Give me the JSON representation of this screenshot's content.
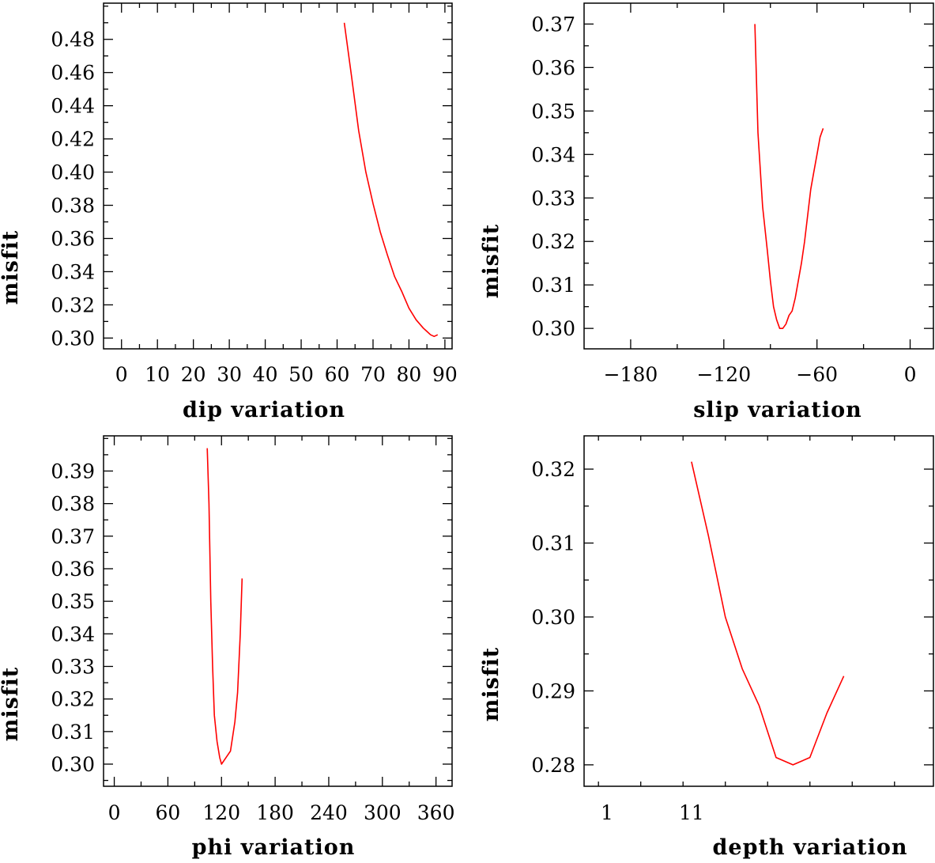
{
  "chart_data": [
    {
      "type": "line",
      "xlabel": "dip variation",
      "ylabel": "misfit",
      "xlim": [
        -5,
        92
      ],
      "ylim": [
        0.2935,
        0.5018
      ],
      "xticks": [
        0,
        10,
        20,
        30,
        40,
        50,
        60,
        70,
        80,
        90
      ],
      "xtick_labels": [
        "0",
        "10",
        "20",
        "30",
        "40",
        "50",
        "60",
        "70",
        "80",
        "90"
      ],
      "yticks": [
        0.3,
        0.32,
        0.34,
        0.36,
        0.38,
        0.4,
        0.42,
        0.44,
        0.46,
        0.48
      ],
      "ytick_labels": [
        "0.30",
        "0.32",
        "0.34",
        "0.36",
        "0.38",
        "0.40",
        "0.42",
        "0.44",
        "0.46",
        "0.48"
      ],
      "line_color": "#ff0000",
      "series": [
        {
          "x": [
            62,
            64,
            66,
            68,
            70,
            72,
            74,
            76,
            78,
            80,
            82,
            84,
            85,
            86,
            87,
            88
          ],
          "y": [
            0.49,
            0.458,
            0.425,
            0.4,
            0.381,
            0.364,
            0.35,
            0.337,
            0.328,
            0.318,
            0.311,
            0.306,
            0.304,
            0.302,
            0.301,
            0.302
          ]
        }
      ]
    },
    {
      "type": "line",
      "xlabel": "slip variation",
      "ylabel": "misfit",
      "xlim": [
        -210,
        15
      ],
      "ylim": [
        0.2953,
        0.3748
      ],
      "xticks": [
        -180,
        -120,
        -60,
        0
      ],
      "xtick_labels": [
        "−180",
        "−120",
        "−60",
        "0"
      ],
      "yticks": [
        0.3,
        0.31,
        0.32,
        0.33,
        0.34,
        0.35,
        0.36,
        0.37
      ],
      "ytick_labels": [
        "0.30",
        "0.31",
        "0.32",
        "0.33",
        "0.34",
        "0.35",
        "0.36",
        "0.37"
      ],
      "line_color": "#ff0000",
      "series": [
        {
          "x": [
            -100,
            -98,
            -95,
            -92,
            -90,
            -88,
            -86,
            -84,
            -82,
            -80,
            -78,
            -76,
            -74,
            -72,
            -70,
            -68,
            -66,
            -64,
            -62,
            -60,
            -58,
            -56
          ],
          "y": [
            0.37,
            0.345,
            0.328,
            0.318,
            0.311,
            0.305,
            0.302,
            0.3,
            0.3,
            0.301,
            0.303,
            0.304,
            0.307,
            0.311,
            0.315,
            0.32,
            0.326,
            0.332,
            0.336,
            0.34,
            0.344,
            0.346
          ]
        }
      ]
    },
    {
      "type": "line",
      "xlabel": "phi variation",
      "ylabel": "misfit",
      "xlim": [
        -12,
        378
      ],
      "ylim": [
        0.2932,
        0.4008
      ],
      "xticks": [
        0,
        60,
        120,
        180,
        240,
        300,
        360
      ],
      "xtick_labels": [
        "0",
        "60",
        "120",
        "180",
        "240",
        "300",
        "360"
      ],
      "yticks": [
        0.3,
        0.31,
        0.32,
        0.33,
        0.34,
        0.35,
        0.36,
        0.37,
        0.38,
        0.39
      ],
      "ytick_labels": [
        "0.30",
        "0.31",
        "0.32",
        "0.33",
        "0.34",
        "0.35",
        "0.36",
        "0.37",
        "0.38",
        "0.39"
      ],
      "line_color": "#ff0000",
      "series": [
        {
          "x": [
            104,
            106,
            108,
            110,
            112,
            115,
            118,
            120,
            125,
            130,
            135,
            138,
            141,
            143
          ],
          "y": [
            0.397,
            0.38,
            0.35,
            0.33,
            0.315,
            0.307,
            0.302,
            0.3,
            0.302,
            0.304,
            0.313,
            0.322,
            0.34,
            0.357
          ]
        }
      ]
    },
    {
      "type": "line",
      "xlabel": "depth variation",
      "ylabel": "misfit",
      "xlim": [
        -1.7,
        39.6
      ],
      "ylim": [
        0.2771,
        0.3245
      ],
      "xticks": [
        1,
        11
      ],
      "xtick_labels": [
        "1",
        "11"
      ],
      "yticks": [
        0.28,
        0.29,
        0.3,
        0.31,
        0.32
      ],
      "ytick_labels": [
        "0.28",
        "0.29",
        "0.30",
        "0.31",
        "0.32"
      ],
      "line_color": "#ff0000",
      "series": [
        {
          "x": [
            11,
            13,
            15,
            17,
            19,
            21,
            23,
            25,
            27,
            29
          ],
          "y": [
            0.321,
            0.311,
            0.3,
            0.293,
            0.288,
            0.281,
            0.28,
            0.281,
            0.287,
            0.292
          ]
        }
      ]
    }
  ]
}
